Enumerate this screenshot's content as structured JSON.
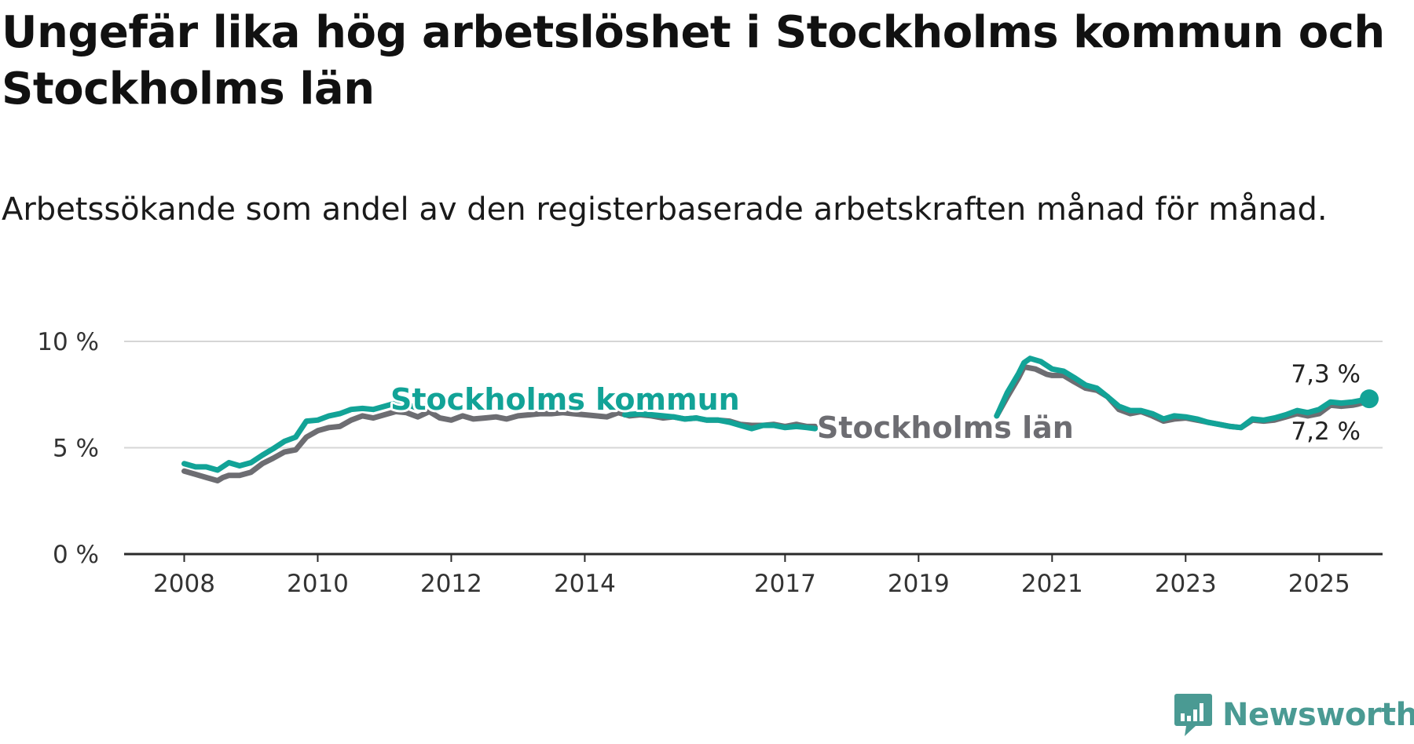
{
  "title": "Ungefär lika hög arbetslöshet i Stockholms kommun och Stockholms län",
  "subtitle": "Arbetssökande som andel av den registerbaserade arbetskraften månad för månad.",
  "brand": {
    "name": "Newsworthy",
    "icon": "newsworthy-logo-icon",
    "color": "#4a9a93"
  },
  "chart_data": {
    "type": "line",
    "y_ticks": [
      {
        "value": 0,
        "label": "0 %"
      },
      {
        "value": 5,
        "label": "5 %"
      },
      {
        "value": 10,
        "label": "10 %"
      }
    ],
    "ylim": [
      0,
      10
    ],
    "x_ticks": [
      {
        "value": 2008,
        "label": "2008"
      },
      {
        "value": 2010,
        "label": "2010"
      },
      {
        "value": 2012,
        "label": "2012"
      },
      {
        "value": 2014,
        "label": "2014"
      },
      {
        "value": 2017,
        "label": "2017"
      },
      {
        "value": 2019,
        "label": "2019"
      },
      {
        "value": 2021,
        "label": "2021"
      },
      {
        "value": 2023,
        "label": "2023"
      },
      {
        "value": 2025,
        "label": "2025"
      }
    ],
    "xlim": [
      2007.1,
      2025.95
    ],
    "grid": true,
    "series": [
      {
        "name": "Stockholms län",
        "color": "#6d6d72",
        "end_label": "7,2 %",
        "segments": [
          [
            [
              2008.0,
              3.9
            ],
            [
              2008.17,
              3.75
            ],
            [
              2008.33,
              3.6
            ],
            [
              2008.5,
              3.45
            ],
            [
              2008.58,
              3.6
            ],
            [
              2008.67,
              3.7
            ],
            [
              2008.83,
              3.7
            ],
            [
              2009.0,
              3.85
            ],
            [
              2009.17,
              4.25
            ],
            [
              2009.33,
              4.5
            ],
            [
              2009.5,
              4.8
            ],
            [
              2009.67,
              4.9
            ],
            [
              2009.83,
              5.5
            ],
            [
              2010.0,
              5.8
            ],
            [
              2010.17,
              5.95
            ],
            [
              2010.33,
              6.0
            ],
            [
              2010.5,
              6.3
            ],
            [
              2010.67,
              6.5
            ],
            [
              2010.83,
              6.4
            ],
            [
              2011.0,
              6.55
            ],
            [
              2011.17,
              6.7
            ],
            [
              2011.33,
              6.65
            ],
            [
              2011.5,
              6.45
            ],
            [
              2011.67,
              6.7
            ],
            [
              2011.83,
              6.4
            ],
            [
              2012.0,
              6.3
            ],
            [
              2012.17,
              6.5
            ],
            [
              2012.33,
              6.35
            ],
            [
              2012.5,
              6.4
            ],
            [
              2012.67,
              6.45
            ],
            [
              2012.83,
              6.35
            ],
            [
              2013.0,
              6.5
            ],
            [
              2013.17,
              6.55
            ],
            [
              2013.33,
              6.6
            ],
            [
              2013.5,
              6.6
            ],
            [
              2013.67,
              6.65
            ],
            [
              2013.83,
              6.6
            ],
            [
              2014.0,
              6.55
            ],
            [
              2014.17,
              6.5
            ],
            [
              2014.33,
              6.45
            ],
            [
              2014.5,
              6.65
            ],
            [
              2014.67,
              6.5
            ],
            [
              2014.83,
              6.55
            ],
            [
              2015.0,
              6.5
            ],
            [
              2015.17,
              6.4
            ],
            [
              2015.33,
              6.45
            ],
            [
              2015.5,
              6.35
            ],
            [
              2015.67,
              6.4
            ],
            [
              2015.83,
              6.3
            ],
            [
              2016.0,
              6.3
            ],
            [
              2016.17,
              6.25
            ],
            [
              2016.33,
              6.1
            ],
            [
              2016.5,
              6.05
            ],
            [
              2016.67,
              6.05
            ],
            [
              2016.83,
              6.1
            ],
            [
              2017.0,
              6.0
            ],
            [
              2017.17,
              6.1
            ],
            [
              2017.33,
              6.0
            ],
            [
              2017.45,
              6.0
            ]
          ],
          [
            [
              2020.17,
              6.5
            ],
            [
              2020.33,
              7.4
            ],
            [
              2020.5,
              8.3
            ],
            [
              2020.58,
              8.8
            ],
            [
              2020.75,
              8.7
            ],
            [
              2020.92,
              8.45
            ],
            [
              2021.0,
              8.4
            ],
            [
              2021.17,
              8.4
            ],
            [
              2021.33,
              8.1
            ],
            [
              2021.5,
              7.8
            ],
            [
              2021.67,
              7.7
            ],
            [
              2021.83,
              7.4
            ],
            [
              2022.0,
              6.8
            ],
            [
              2022.17,
              6.6
            ],
            [
              2022.33,
              6.7
            ],
            [
              2022.5,
              6.5
            ],
            [
              2022.67,
              6.25
            ],
            [
              2022.83,
              6.35
            ],
            [
              2023.0,
              6.4
            ],
            [
              2023.17,
              6.3
            ],
            [
              2023.33,
              6.2
            ],
            [
              2023.5,
              6.1
            ],
            [
              2023.67,
              6.0
            ],
            [
              2023.83,
              5.95
            ],
            [
              2024.0,
              6.3
            ],
            [
              2024.17,
              6.25
            ],
            [
              2024.33,
              6.3
            ],
            [
              2024.5,
              6.45
            ],
            [
              2024.67,
              6.6
            ],
            [
              2024.83,
              6.5
            ],
            [
              2025.0,
              6.6
            ],
            [
              2025.17,
              7.0
            ],
            [
              2025.33,
              6.95
            ],
            [
              2025.5,
              7.0
            ],
            [
              2025.58,
              7.05
            ],
            [
              2025.75,
              7.2
            ]
          ]
        ]
      },
      {
        "name": "Stockholms kommun",
        "color": "#12a397",
        "end_label": "7,3 %",
        "segments": [
          [
            [
              2008.0,
              4.25
            ],
            [
              2008.17,
              4.1
            ],
            [
              2008.33,
              4.1
            ],
            [
              2008.5,
              3.95
            ],
            [
              2008.67,
              4.3
            ],
            [
              2008.83,
              4.15
            ],
            [
              2009.0,
              4.3
            ],
            [
              2009.17,
              4.65
            ],
            [
              2009.33,
              4.95
            ],
            [
              2009.5,
              5.3
            ],
            [
              2009.67,
              5.5
            ],
            [
              2009.83,
              6.25
            ],
            [
              2010.0,
              6.3
            ],
            [
              2010.17,
              6.5
            ],
            [
              2010.33,
              6.6
            ],
            [
              2010.5,
              6.8
            ],
            [
              2010.67,
              6.85
            ],
            [
              2010.83,
              6.8
            ],
            [
              2011.0,
              6.95
            ],
            [
              2011.17,
              7.1
            ],
            [
              2011.33,
              7.05
            ],
            [
              2011.5,
              6.85
            ],
            [
              2011.67,
              7.0
            ]
          ],
          [
            [
              2014.6,
              6.55
            ],
            [
              2014.83,
              6.6
            ],
            [
              2015.0,
              6.55
            ],
            [
              2015.17,
              6.5
            ],
            [
              2015.33,
              6.45
            ],
            [
              2015.5,
              6.35
            ],
            [
              2015.67,
              6.4
            ],
            [
              2015.83,
              6.3
            ],
            [
              2016.0,
              6.3
            ],
            [
              2016.17,
              6.2
            ],
            [
              2016.33,
              6.05
            ],
            [
              2016.5,
              5.9
            ],
            [
              2016.67,
              6.05
            ],
            [
              2016.83,
              6.05
            ],
            [
              2017.0,
              5.95
            ],
            [
              2017.17,
              6.0
            ],
            [
              2017.33,
              5.95
            ],
            [
              2017.45,
              5.9
            ]
          ],
          [
            [
              2020.17,
              6.5
            ],
            [
              2020.33,
              7.6
            ],
            [
              2020.5,
              8.5
            ],
            [
              2020.58,
              9.0
            ],
            [
              2020.67,
              9.2
            ],
            [
              2020.83,
              9.05
            ],
            [
              2021.0,
              8.7
            ],
            [
              2021.17,
              8.6
            ],
            [
              2021.33,
              8.3
            ],
            [
              2021.5,
              7.95
            ],
            [
              2021.67,
              7.8
            ],
            [
              2021.83,
              7.4
            ],
            [
              2022.0,
              6.95
            ],
            [
              2022.17,
              6.75
            ],
            [
              2022.33,
              6.75
            ],
            [
              2022.5,
              6.6
            ],
            [
              2022.67,
              6.35
            ],
            [
              2022.83,
              6.5
            ],
            [
              2023.0,
              6.45
            ],
            [
              2023.17,
              6.35
            ],
            [
              2023.33,
              6.2
            ],
            [
              2023.5,
              6.1
            ],
            [
              2023.67,
              6.0
            ],
            [
              2023.83,
              5.95
            ],
            [
              2024.0,
              6.35
            ],
            [
              2024.17,
              6.3
            ],
            [
              2024.33,
              6.4
            ],
            [
              2024.5,
              6.55
            ],
            [
              2024.67,
              6.75
            ],
            [
              2024.83,
              6.65
            ],
            [
              2025.0,
              6.8
            ],
            [
              2025.17,
              7.15
            ],
            [
              2025.33,
              7.1
            ],
            [
              2025.5,
              7.15
            ],
            [
              2025.58,
              7.2
            ],
            [
              2025.75,
              7.3
            ]
          ]
        ]
      }
    ],
    "annotations": [
      {
        "text": "Stockholms kommun",
        "series": "Stockholms kommun"
      },
      {
        "text": "Stockholms län",
        "series": "Stockholms län"
      }
    ]
  }
}
